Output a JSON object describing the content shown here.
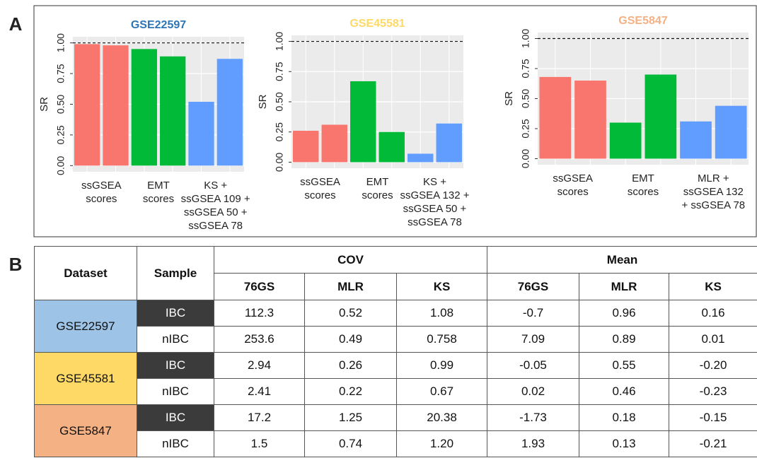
{
  "panel_labels": [
    "A",
    "B"
  ],
  "chart_data": [
    {
      "type": "bar",
      "title": "GSE22597",
      "title_color": "#2e75b6",
      "ylabel": "SR",
      "ylim": [
        -0.05,
        1.05
      ],
      "yticks": [
        {
          "value": 0,
          "label": "0.00"
        },
        0.25,
        {
          "value": 0.5,
          "label": "0.50"
        },
        0.75,
        {
          "value": 1,
          "label": "1.00"
        }
      ],
      "grid": true,
      "reference_line": 1,
      "groups": [
        {
          "label": [
            "ssGSEA",
            "scores"
          ],
          "color": "#f8766d",
          "values": [
            0.99,
            0.98
          ]
        },
        {
          "label": [
            "EMT",
            "scores"
          ],
          "color": "#00ba38",
          "values": [
            0.95,
            0.89
          ]
        },
        {
          "label": [
            "KS +",
            "ssGSEA 109 +",
            "ssGSEA 50 +",
            "ssGSEA 78"
          ],
          "color": "#619cff",
          "values": [
            0.52,
            0.87
          ]
        }
      ]
    },
    {
      "type": "bar",
      "title": "GSE45581",
      "title_color": "#ffd966",
      "ylabel": "SR",
      "ylim": [
        -0.05,
        1.05
      ],
      "yticks": [
        {
          "value": 0,
          "label": "0.00"
        },
        0.25,
        {
          "value": 0.5,
          "label": "0.50"
        },
        0.75,
        {
          "value": 1,
          "label": "1.00"
        }
      ],
      "grid": true,
      "reference_line": 1,
      "groups": [
        {
          "label": [
            "ssGSEA",
            "scores"
          ],
          "color": "#f8766d",
          "values": [
            0.26,
            0.31
          ]
        },
        {
          "label": [
            "EMT",
            "scores"
          ],
          "color": "#00ba38",
          "values": [
            0.67,
            0.25
          ]
        },
        {
          "label": [
            "KS +",
            "ssGSEA 132 +",
            "ssGSEA 50 +",
            "ssGSEA 78"
          ],
          "color": "#619cff",
          "values": [
            0.07,
            0.32
          ]
        }
      ]
    },
    {
      "type": "bar",
      "title": "GSE5847",
      "title_color": "#f4b183",
      "ylabel": "SR",
      "ylim": [
        -0.05,
        1.05
      ],
      "yticks": [
        {
          "value": 0,
          "label": "0.00"
        },
        0.25,
        {
          "value": 0.5,
          "label": "0.50"
        },
        0.75,
        {
          "value": 1,
          "label": "1.00"
        }
      ],
      "grid": true,
      "reference_line": 1,
      "groups": [
        {
          "label": [
            "ssGSEA",
            "scores"
          ],
          "color": "#f8766d",
          "values": [
            0.68,
            0.65
          ]
        },
        {
          "label": [
            "EMT",
            "scores"
          ],
          "color": "#00ba38",
          "values": [
            0.3,
            0.7
          ]
        },
        {
          "label": [
            "MLR +",
            "ssGSEA 132",
            "+ ssGSEA 78"
          ],
          "color": "#619cff",
          "values": [
            0.31,
            0.44
          ]
        }
      ]
    }
  ],
  "table": {
    "header": {
      "dataset": "Dataset",
      "sample": "Sample",
      "groups": [
        "COV",
        "Mean"
      ],
      "columns": [
        "76GS",
        "MLR",
        "KS",
        "76GS",
        "MLR",
        "KS"
      ]
    },
    "rows": [
      {
        "dataset": "GSE22597",
        "color": "#9dc3e6",
        "samples": [
          {
            "sample": "IBC",
            "color": "#3b3b3b",
            "values": [
              "112.3",
              "0.52",
              "1.08",
              "-0.7",
              "0.96",
              "0.16"
            ]
          },
          {
            "sample": "nIBC",
            "color": "#ffffff",
            "values": [
              "253.6",
              "0.49",
              "0.758",
              "7.09",
              "0.89",
              "0.01"
            ]
          }
        ]
      },
      {
        "dataset": "GSE45581",
        "color": "#ffd966",
        "samples": [
          {
            "sample": "IBC",
            "color": "#3b3b3b",
            "values": [
              "2.94",
              "0.26",
              "0.99",
              "-0.05",
              "0.55",
              "-0.20"
            ]
          },
          {
            "sample": "nIBC",
            "color": "#ffffff",
            "values": [
              "2.41",
              "0.22",
              "0.67",
              "0.02",
              "0.46",
              "-0.23"
            ]
          }
        ]
      },
      {
        "dataset": "GSE5847",
        "color": "#f4b183",
        "samples": [
          {
            "sample": "IBC",
            "color": "#3b3b3b",
            "values": [
              "17.2",
              "1.25",
              "20.38",
              "-1.73",
              "0.18",
              "-0.15"
            ]
          },
          {
            "sample": "nIBC",
            "color": "#ffffff",
            "values": [
              "1.5",
              "0.74",
              "1.20",
              "1.93",
              "0.13",
              "-0.21"
            ]
          }
        ]
      }
    ]
  }
}
